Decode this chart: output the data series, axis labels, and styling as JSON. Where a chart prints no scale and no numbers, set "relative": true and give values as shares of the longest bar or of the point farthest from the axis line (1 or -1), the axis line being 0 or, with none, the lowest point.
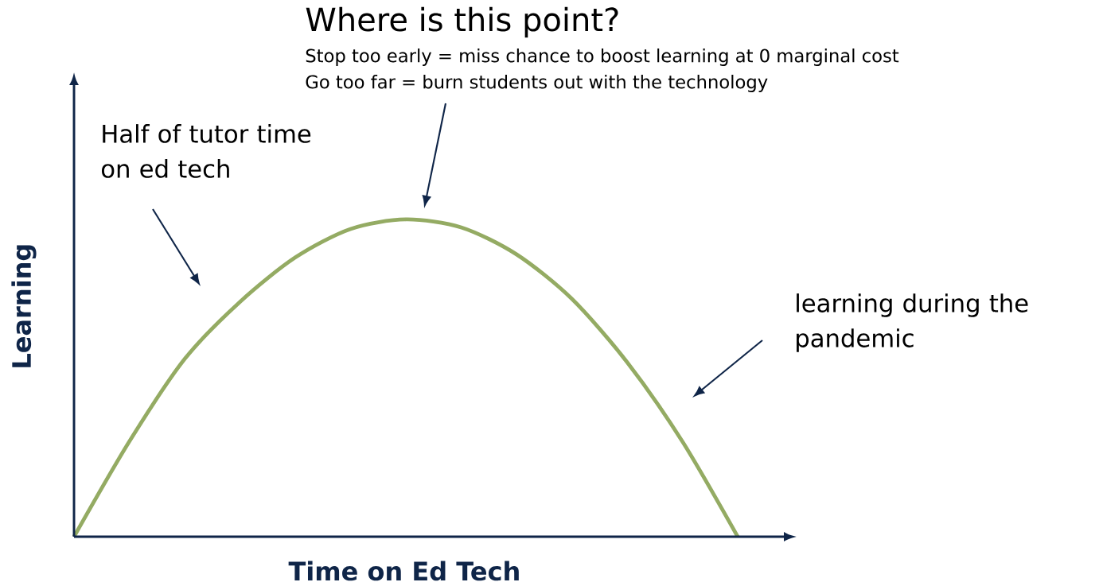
{
  "chart_data": {
    "type": "line",
    "relative": true,
    "title": "Where is this point?",
    "xlabel": "Time on Ed Tech",
    "ylabel": "Learning",
    "categories": [
      null,
      null,
      null,
      null,
      null,
      null,
      null,
      null,
      null,
      null,
      null,
      null,
      null
    ],
    "values": [
      0,
      0.3,
      0.56,
      0.74,
      0.88,
      0.97,
      1,
      0.975,
      0.89,
      0.75,
      0.55,
      0.3,
      0
    ],
    "color": "#94ab63",
    "annotations": [
      "Stop too early = miss chance to boost learning at 0 marginal cost",
      "Go too far = burn students out with the technology",
      "Half of tutor time on ed tech",
      "learning during the pandemic"
    ]
  }
}
